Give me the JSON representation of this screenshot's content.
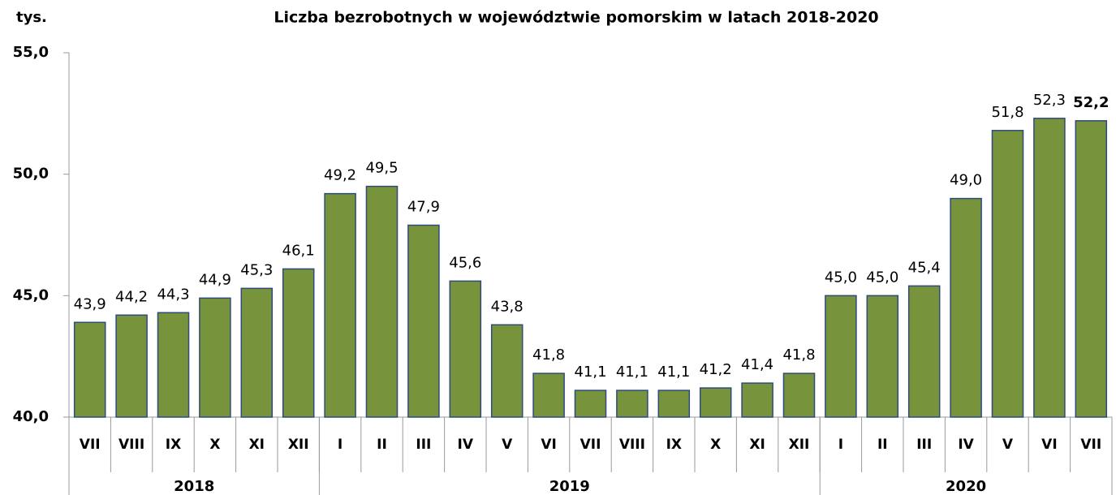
{
  "chart_data": {
    "type": "bar",
    "title": "Liczba bezrobotnych w województwie pomorskim w latach 2018-2020",
    "y_label": "tys.",
    "categories": [
      "VII",
      "VIII",
      "IX",
      "X",
      "XI",
      "XII",
      "I",
      "II",
      "III",
      "IV",
      "V",
      "VI",
      "VII",
      "VIII",
      "IX",
      "X",
      "XI",
      "XII",
      "I",
      "II",
      "III",
      "IV",
      "V",
      "VI",
      "VII"
    ],
    "x_groups": [
      {
        "label": "2018",
        "size": 6
      },
      {
        "label": "2019",
        "size": 12
      },
      {
        "label": "2020",
        "size": 7
      }
    ],
    "values": [
      43.9,
      44.2,
      44.3,
      44.9,
      45.3,
      46.1,
      49.2,
      49.5,
      47.9,
      45.6,
      43.8,
      41.8,
      41.1,
      41.1,
      41.1,
      41.2,
      41.4,
      41.8,
      45.0,
      45.0,
      45.4,
      49.0,
      51.8,
      52.3,
      52.2
    ],
    "value_labels": [
      "43,9",
      "44,2",
      "44,3",
      "44,9",
      "45,3",
      "46,1",
      "49,2",
      "49,5",
      "47,9",
      "45,6",
      "43,8",
      "41,8",
      "41,1",
      "41,1",
      "41,1",
      "41,2",
      "41,4",
      "41,8",
      "45,0",
      "45,0",
      "45,4",
      "49,0",
      "51,8",
      "52,3",
      "52,2"
    ],
    "bold_label_index": 24,
    "color": "#77933c",
    "edge_color": "#2f4b7c",
    "ylim": [
      40,
      55
    ],
    "yticks": [
      {
        "value": 40,
        "label": "40,0"
      },
      {
        "value": 45,
        "label": "45,0"
      },
      {
        "value": 50,
        "label": "50,0"
      },
      {
        "value": 55,
        "label": "55,0"
      }
    ],
    "grid": false
  }
}
